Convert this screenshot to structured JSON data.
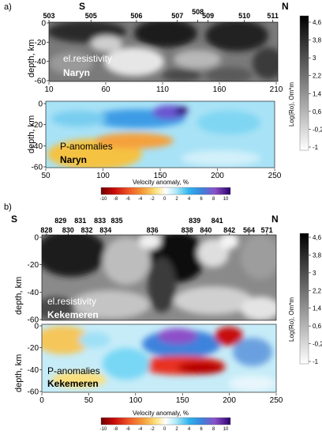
{
  "panels": {
    "a": {
      "label": "a)",
      "left_dir": "S",
      "right_dir": "N",
      "stations": [
        {
          "name": "503",
          "x": 10
        },
        {
          "name": "505",
          "x": 47
        },
        {
          "name": "506",
          "x": 87
        },
        {
          "name": "507",
          "x": 123
        },
        {
          "name": "508",
          "x": 141
        },
        {
          "name": "509",
          "x": 150
        },
        {
          "name": "510",
          "x": 182
        },
        {
          "name": "511",
          "x": 207
        }
      ],
      "resistivity": {
        "title": "el.resistivity",
        "region": "Naryn",
        "ylabel": "depth, km",
        "yticks": [
          "0",
          "-20",
          "-40",
          "-60"
        ],
        "xticks": [
          "10",
          "60",
          "110",
          "160",
          "210"
        ]
      },
      "velocity": {
        "title": "P-anomalies",
        "region": "Naryn",
        "ylabel": "depth, km",
        "yticks": [
          "0",
          "-20",
          "-40",
          "-60"
        ],
        "xticks": [
          "50",
          "100",
          "150",
          "200",
          "250"
        ]
      }
    },
    "b": {
      "label": "b)",
      "left_dir": "S",
      "right_dir": "N",
      "stations_top": [
        {
          "name": "829",
          "x": 20
        },
        {
          "name": "831",
          "x": 41
        },
        {
          "name": "833",
          "x": 62
        },
        {
          "name": "835",
          "x": 80
        },
        {
          "name": "839",
          "x": 163
        },
        {
          "name": "841",
          "x": 187
        }
      ],
      "stations_bottom": [
        {
          "name": "828",
          "x": 5
        },
        {
          "name": "830",
          "x": 28
        },
        {
          "name": "832",
          "x": 48
        },
        {
          "name": "834",
          "x": 68
        },
        {
          "name": "836",
          "x": 118
        },
        {
          "name": "838",
          "x": 155
        },
        {
          "name": "840",
          "x": 175
        },
        {
          "name": "842",
          "x": 200
        },
        {
          "name": "564",
          "x": 221
        },
        {
          "name": "571",
          "x": 240
        }
      ],
      "resistivity": {
        "title": "el.resistivity",
        "region": "Kekemeren",
        "ylabel": "depth, km",
        "yticks": [
          "0",
          "-20",
          "-40",
          "-60"
        ],
        "xticks": [
          "0",
          "50",
          "100",
          "150",
          "200",
          "250"
        ]
      },
      "velocity": {
        "title": "P-anomalies",
        "region": "Kekemeren",
        "ylabel": "depth, km",
        "yticks": [
          "0",
          "-20",
          "-40",
          "-60"
        ],
        "xticks": [
          "0",
          "50",
          "100",
          "150",
          "200",
          "250"
        ]
      }
    }
  },
  "velocity_colorbar": {
    "label": "Velocity anomaly, %",
    "ticks": [
      "-10",
      "-8",
      "-6",
      "-4",
      "-2",
      "0",
      "2",
      "4",
      "6",
      "8",
      "10"
    ],
    "colors": [
      "#6e0000",
      "#b80000",
      "#e8281e",
      "#f06432",
      "#f59a3c",
      "#fbd35a",
      "#fdf5b4",
      "#ffffff",
      "#c8f0fa",
      "#78d7f5",
      "#2eb4ee",
      "#3c82dc",
      "#5a5ad2",
      "#8c50c8",
      "#b43cb4",
      "#6e00b4",
      "#300078"
    ]
  },
  "resistivity_colorbar": {
    "label": "Log(Ro), Om*m",
    "ticks": [
      "4,6",
      "3,8",
      "3",
      "2,2",
      "1,4",
      "0,6",
      "-0,2",
      "-1"
    ]
  }
}
